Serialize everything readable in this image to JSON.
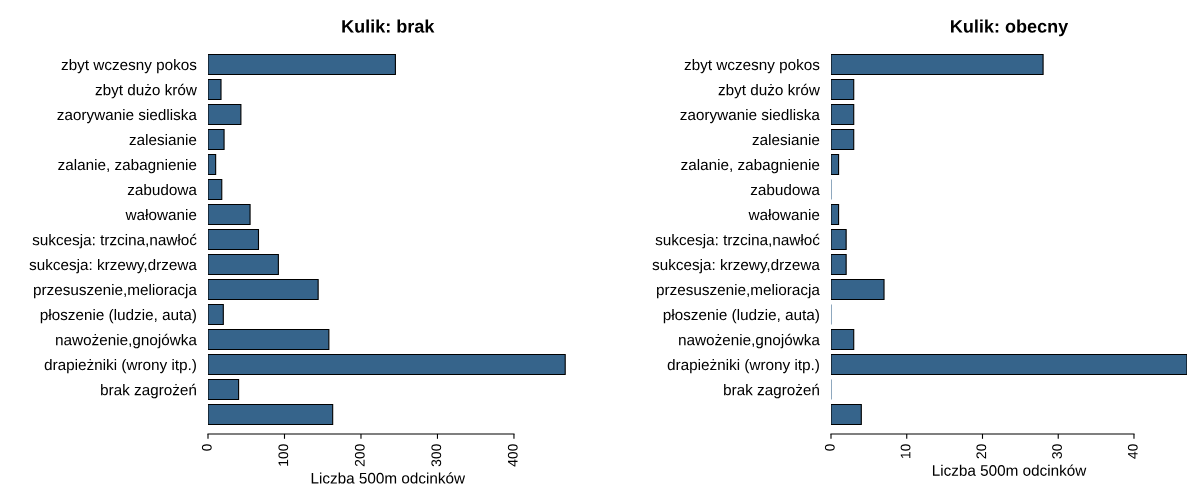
{
  "chart_data": [
    {
      "type": "bar",
      "orientation": "horizontal",
      "title": "Kulik: brak",
      "xlabel": "Liczba 500m odcinków",
      "categories": [
        "zbyt wczesny pokos",
        "zbyt dużo krów",
        "zaorywanie siedliska",
        "zalesianie",
        "zalanie, zabagnienie",
        "zabudowa",
        "wałowanie",
        "sukcesja: trzcina,nawłoć",
        "sukcesja: krzewy,drzewa",
        "przesuszenie,melioracja",
        "płoszenie (ludzie, auta)",
        "nawożenie,gnojówka",
        "drapieżniki (wrony itp.)",
        "brak zagrożeń",
        null
      ],
      "values": [
        245,
        17,
        43,
        21,
        10,
        18,
        55,
        66,
        92,
        144,
        20,
        158,
        467,
        40,
        163
      ],
      "color": "#36648b",
      "xlim": [
        0,
        470
      ],
      "xticks": [
        0,
        100,
        200,
        300,
        400
      ],
      "grid": false
    },
    {
      "type": "bar",
      "orientation": "horizontal",
      "title": "Kulik: obecny",
      "xlabel": "Liczba 500m odcinków",
      "categories": [
        "zbyt wczesny pokos",
        "zbyt dużo krów",
        "zaorywanie siedliska",
        "zalesianie",
        "zalanie, zabagnienie",
        "zabudowa",
        "wałowanie",
        "sukcesja: trzcina,nawłoć",
        "sukcesja: krzewy,drzewa",
        "przesuszenie,melioracja",
        "płoszenie (ludzie, auta)",
        "nawożenie,gnojówka",
        "drapieżniki (wrony itp.)",
        "brak zagrożeń",
        null
      ],
      "values": [
        28,
        3,
        3,
        3,
        1,
        0,
        1,
        2,
        2,
        7,
        0,
        3,
        47,
        0,
        4
      ],
      "color": "#36648b",
      "xlim": [
        0,
        47
      ],
      "xticks": [
        0,
        10,
        20,
        30,
        40
      ],
      "grid": false
    }
  ]
}
